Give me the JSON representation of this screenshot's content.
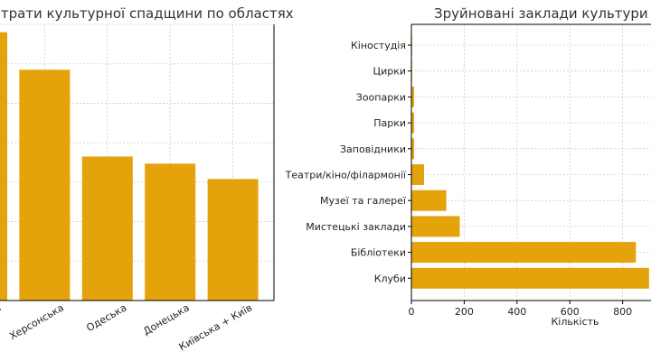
{
  "chart_data": [
    {
      "type": "bar",
      "title": "Втрати культурної спадщини по областях",
      "title_visible": "втрати культурної спадщини по областях",
      "xlabel": "",
      "ylabel": "",
      "categories": [
        "…ька",
        "Херсонська",
        "Одеська",
        "Донецька",
        "Київська + Київ"
      ],
      "values": [
        68,
        58.5,
        36.5,
        34.7,
        30.8
      ],
      "ylim": [
        0,
        70
      ],
      "grid": true,
      "color": "#E4A20B"
    },
    {
      "type": "bar",
      "orientation": "horizontal",
      "title": "Зруйновані заклади культури",
      "xlabel": "Кількість",
      "ylabel": "",
      "categories": [
        "Кіностудія",
        "Цирки",
        "Зоопарки",
        "Парки",
        "Заповідники",
        "Театри/кіно/філармонії",
        "Музеї та галереї",
        "Мистецькі заклади",
        "Бібліотеки",
        "Клуби"
      ],
      "values": [
        1,
        2,
        10,
        10,
        10,
        48,
        132,
        183,
        850,
        900
      ],
      "xticks": [
        0,
        200,
        400,
        600,
        800
      ],
      "xlim": [
        0,
        900
      ],
      "grid": true,
      "color": "#E4A20B"
    }
  ]
}
